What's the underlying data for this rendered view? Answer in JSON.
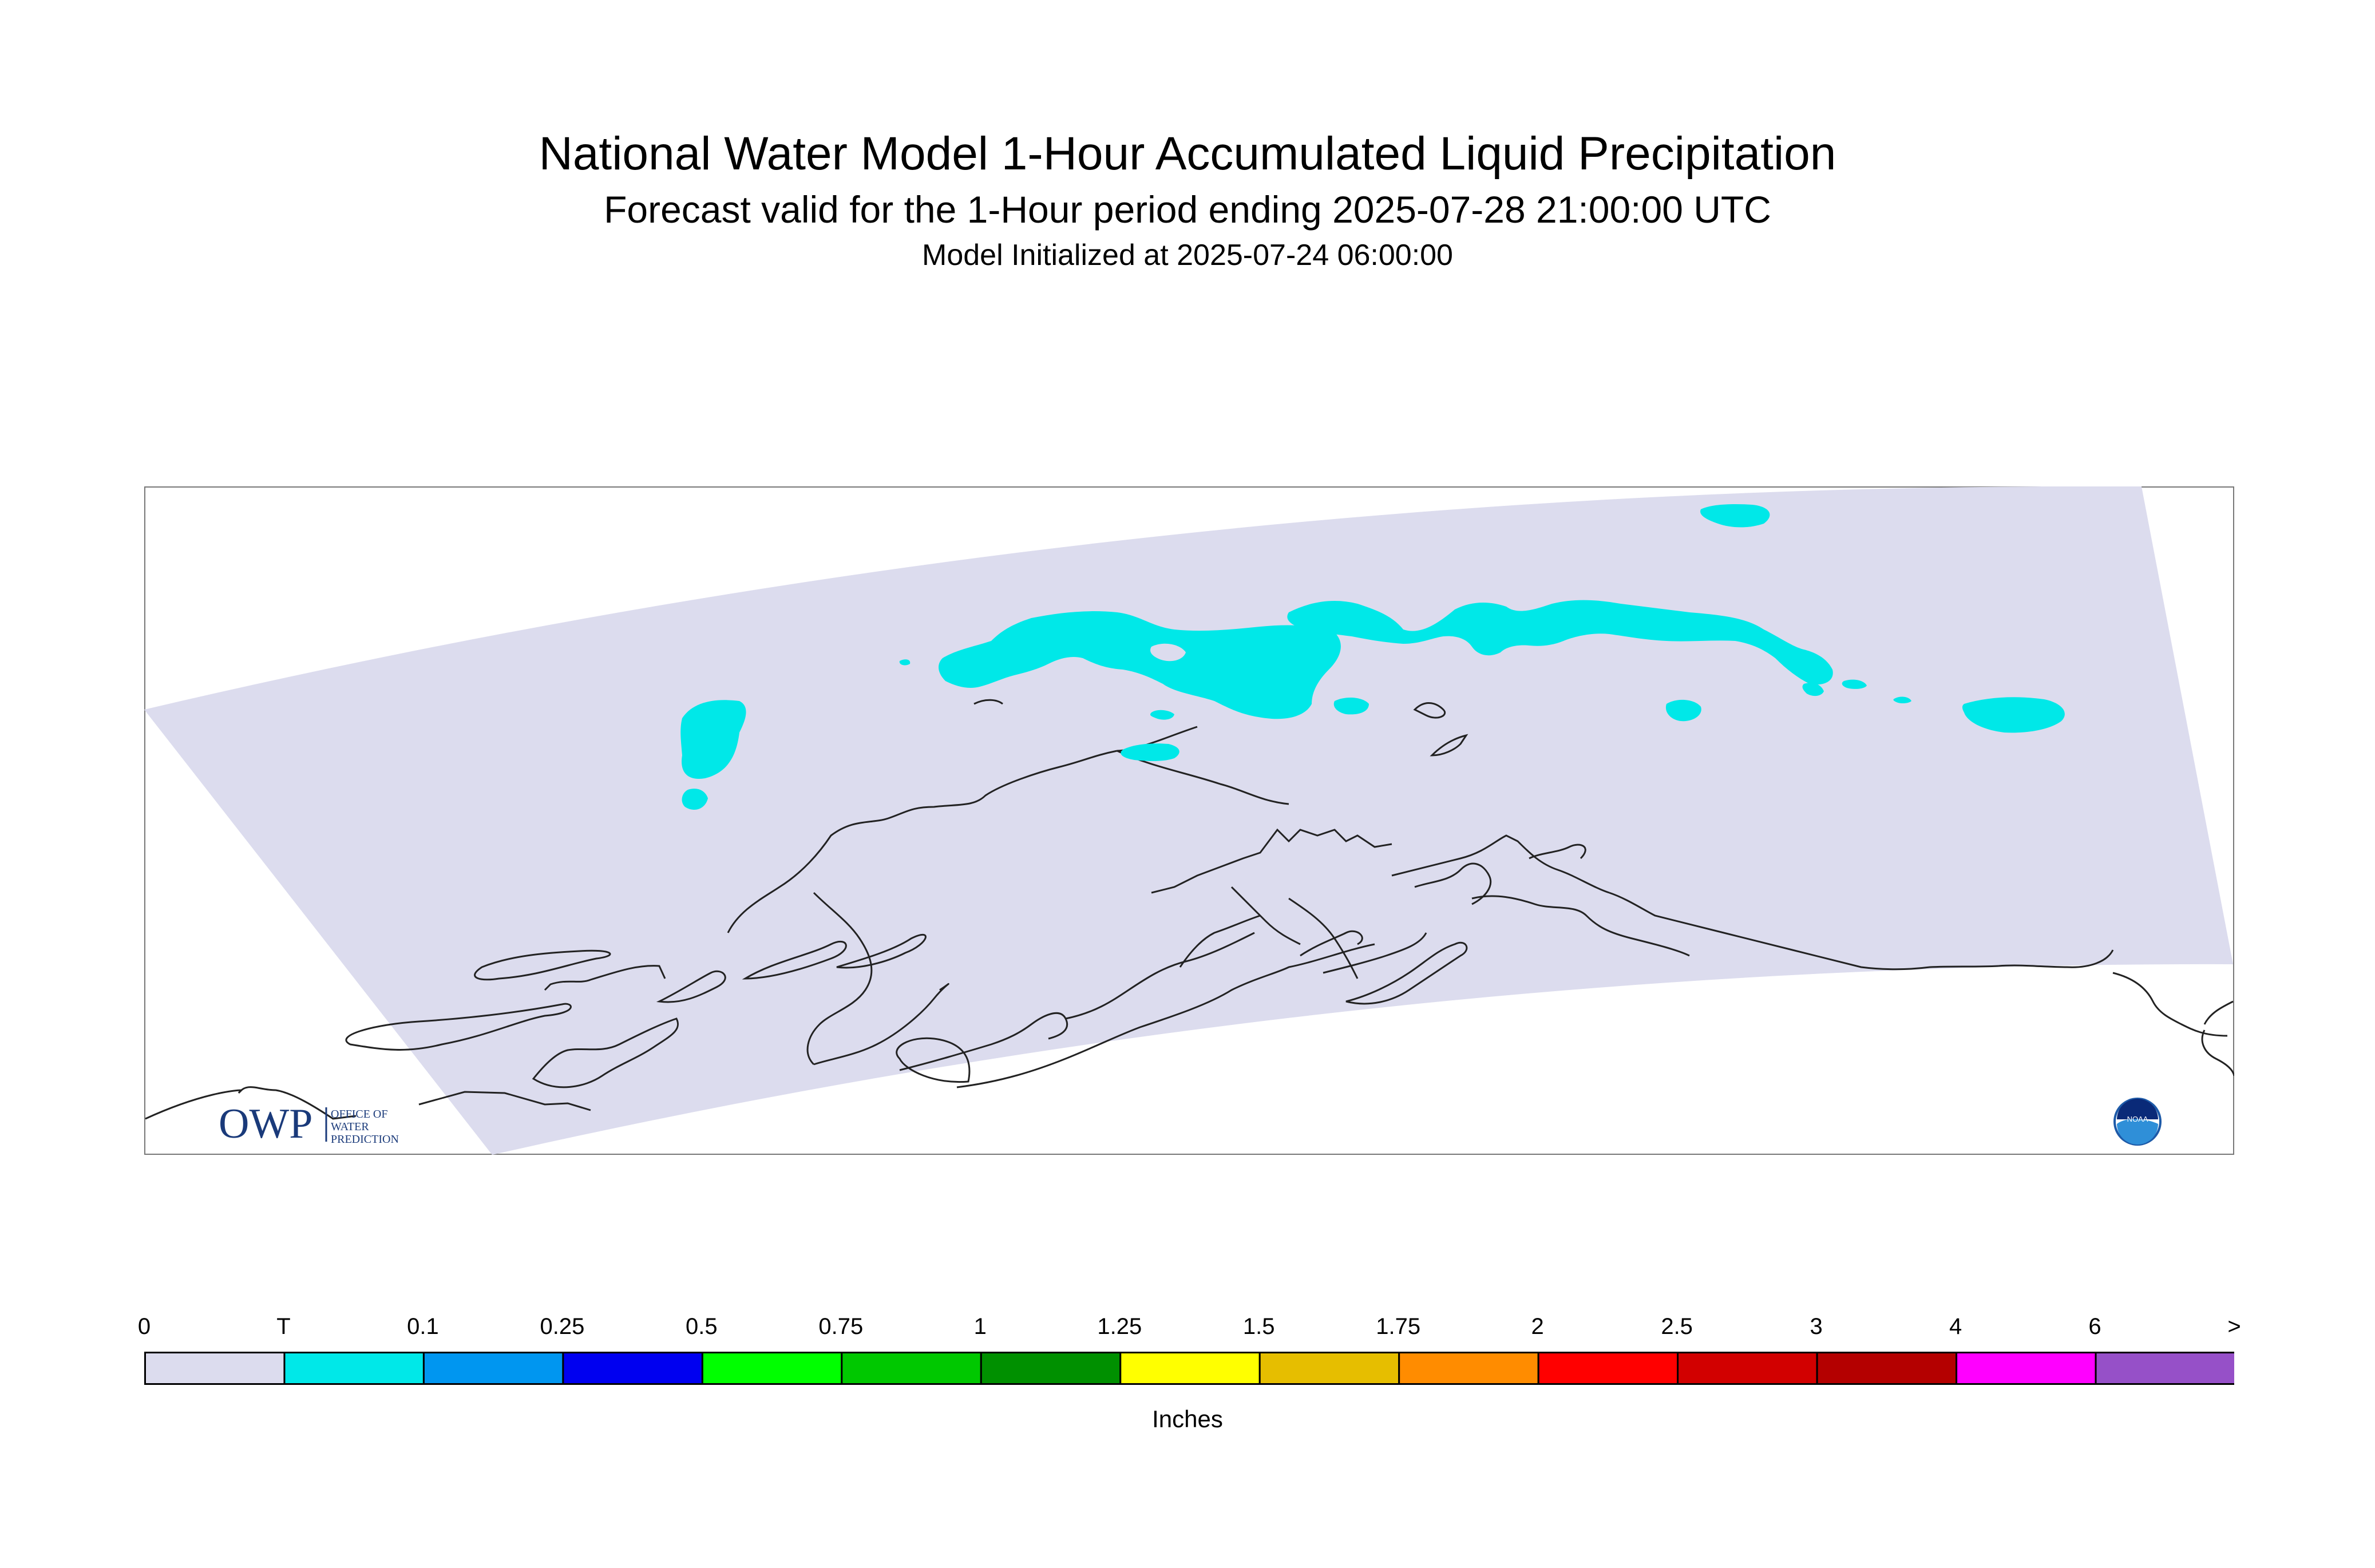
{
  "header": {
    "title": "National Water Model 1-Hour Accumulated Liquid Precipitation",
    "subtitle": "Forecast valid for the 1-Hour period ending 2025-07-28 21:00:00 UTC",
    "init": "Model Initialized at 2025-07-24 06:00:00"
  },
  "map": {
    "domain_color": "#dcdcee",
    "precip_color": "#00e8e8",
    "coast_color": "#222222",
    "logo_left": {
      "main": "OWP",
      "text": [
        "OFFICE OF",
        "WATER",
        "PREDICTION"
      ],
      "color": "#1a3a7a"
    },
    "logo_right": {
      "text": "NOAA",
      "icon": "noaa-logo"
    }
  },
  "colorbar": {
    "labels": [
      "0",
      "T",
      "0.1",
      "0.25",
      "0.5",
      "0.75",
      "1",
      "1.25",
      "1.5",
      "1.75",
      "2",
      "2.5",
      "3",
      "4",
      "6",
      ">"
    ],
    "colors": [
      "#dcdcee",
      "#00e8e8",
      "#0096f0",
      "#0000f0",
      "#00ff00",
      "#00c800",
      "#009000",
      "#ffff00",
      "#e6be00",
      "#ff8c00",
      "#ff0000",
      "#d20000",
      "#b40000",
      "#ff00ff",
      "#9650c8"
    ],
    "units": "Inches"
  }
}
